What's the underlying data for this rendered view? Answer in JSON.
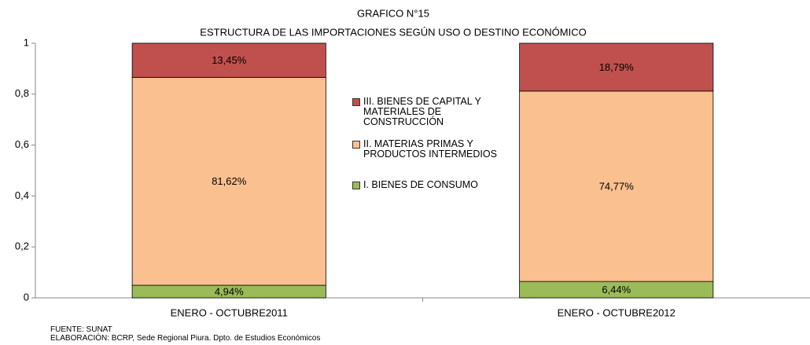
{
  "chart_data": {
    "type": "stacked_bar",
    "title": "GRAFICO N°15",
    "subtitle": "ESTRUCTURA DE LAS IMPORTACIONES SEGÚN USO O DESTINO ECONÓMICO",
    "categories": [
      "ENERO - OCTUBRE2011",
      "ENERO - OCTUBRE2012"
    ],
    "series": [
      {
        "name": "I. BIENES DE CONSUMO",
        "color": "#9bbb59",
        "values": [
          0.0494,
          0.0644
        ],
        "value_labels": [
          "4,94%",
          "6,44%"
        ]
      },
      {
        "name": "II. MATERIAS PRIMAS Y PRODUCTOS INTERMEDIOS",
        "color": "#fac090",
        "values": [
          0.8162,
          0.7477
        ],
        "value_labels": [
          "81,62%",
          "74,77%"
        ]
      },
      {
        "name": "III. BIENES DE CAPITAL Y MATERIALES DE CONSTRUCCIÓN",
        "color": "#c0504d",
        "values": [
          0.1345,
          0.1879
        ],
        "value_labels": [
          "13,45%",
          "18,79%"
        ]
      }
    ],
    "ylim": [
      0,
      1
    ],
    "yticks": [
      0,
      {
        "value": 0.2,
        "label": "0,2"
      },
      {
        "value": 0.4,
        "label": "0,4"
      },
      {
        "value": 0.6,
        "label": "0,6"
      },
      {
        "value": 0.8,
        "label": "0,8"
      },
      1
    ],
    "legend": "center",
    "notes": [
      "FUENTE: SUNAT",
      "ELABORACIÓN: BCRP, Sede Regional Piura. Dpto. de Estudios Económicos"
    ]
  }
}
